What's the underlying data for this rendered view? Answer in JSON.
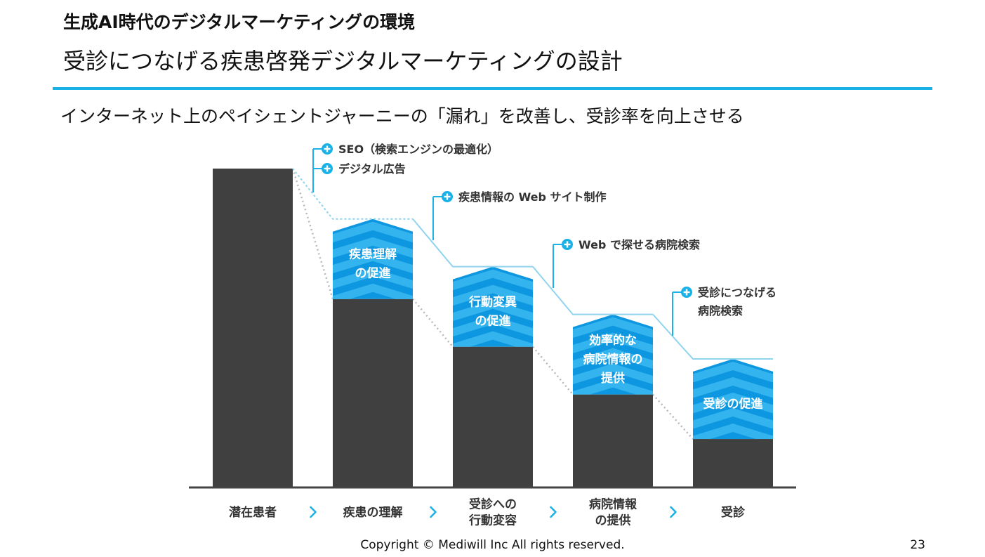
{
  "header": {
    "title": "生成AI時代のデジタルマーケティングの環境",
    "subtitle": "受診につなげる疾患啓発デジタルマーケティングの設計"
  },
  "lead": "インターネット上のペイシェントジャーニーの「漏れ」を改善し、受診率を向上させる",
  "colors": {
    "accent": "#19b1e6",
    "bar": "#404040",
    "chevron_dark": "#0d97e0",
    "chevron_light": "#3cb8f0",
    "leak_line": "#8fd3ef",
    "gray_line": "#b8b8b8"
  },
  "funnel": {
    "stages": [
      {
        "label": [
          "潜在患者"
        ],
        "level": 1.0,
        "tag": []
      },
      {
        "label": [
          "疾患の理解"
        ],
        "level": 0.59,
        "tag": [
          "疾患理解",
          "の促進"
        ]
      },
      {
        "label": [
          "受診への",
          "行動変容"
        ],
        "level": 0.44,
        "tag": [
          "行動変異",
          "の促進"
        ]
      },
      {
        "label": [
          "病院情報",
          "の提供"
        ],
        "level": 0.29,
        "tag": [
          "効率的な",
          "病院情報の",
          "提供"
        ]
      },
      {
        "label": [
          "受診"
        ],
        "level": 0.15,
        "tag": [
          "受診の促進"
        ]
      }
    ],
    "measures": [
      {
        "items": [
          [
            "SEO（検索エンジンの最適化）"
          ],
          [
            "デジタル広告"
          ]
        ]
      },
      {
        "items": [
          [
            "疾患情報の Web サイト制作"
          ]
        ]
      },
      {
        "items": [
          [
            "Web で探せる病院検索"
          ]
        ]
      },
      {
        "items": [
          [
            "受診につなげる",
            "病院検索"
          ]
        ]
      }
    ],
    "arrow_icon": "chevron-right-icon",
    "plus_icon": "plus-circle-icon"
  },
  "footer": {
    "copyright": "Copyright © Mediwill Inc All rights reserved.",
    "page_number": "23"
  }
}
